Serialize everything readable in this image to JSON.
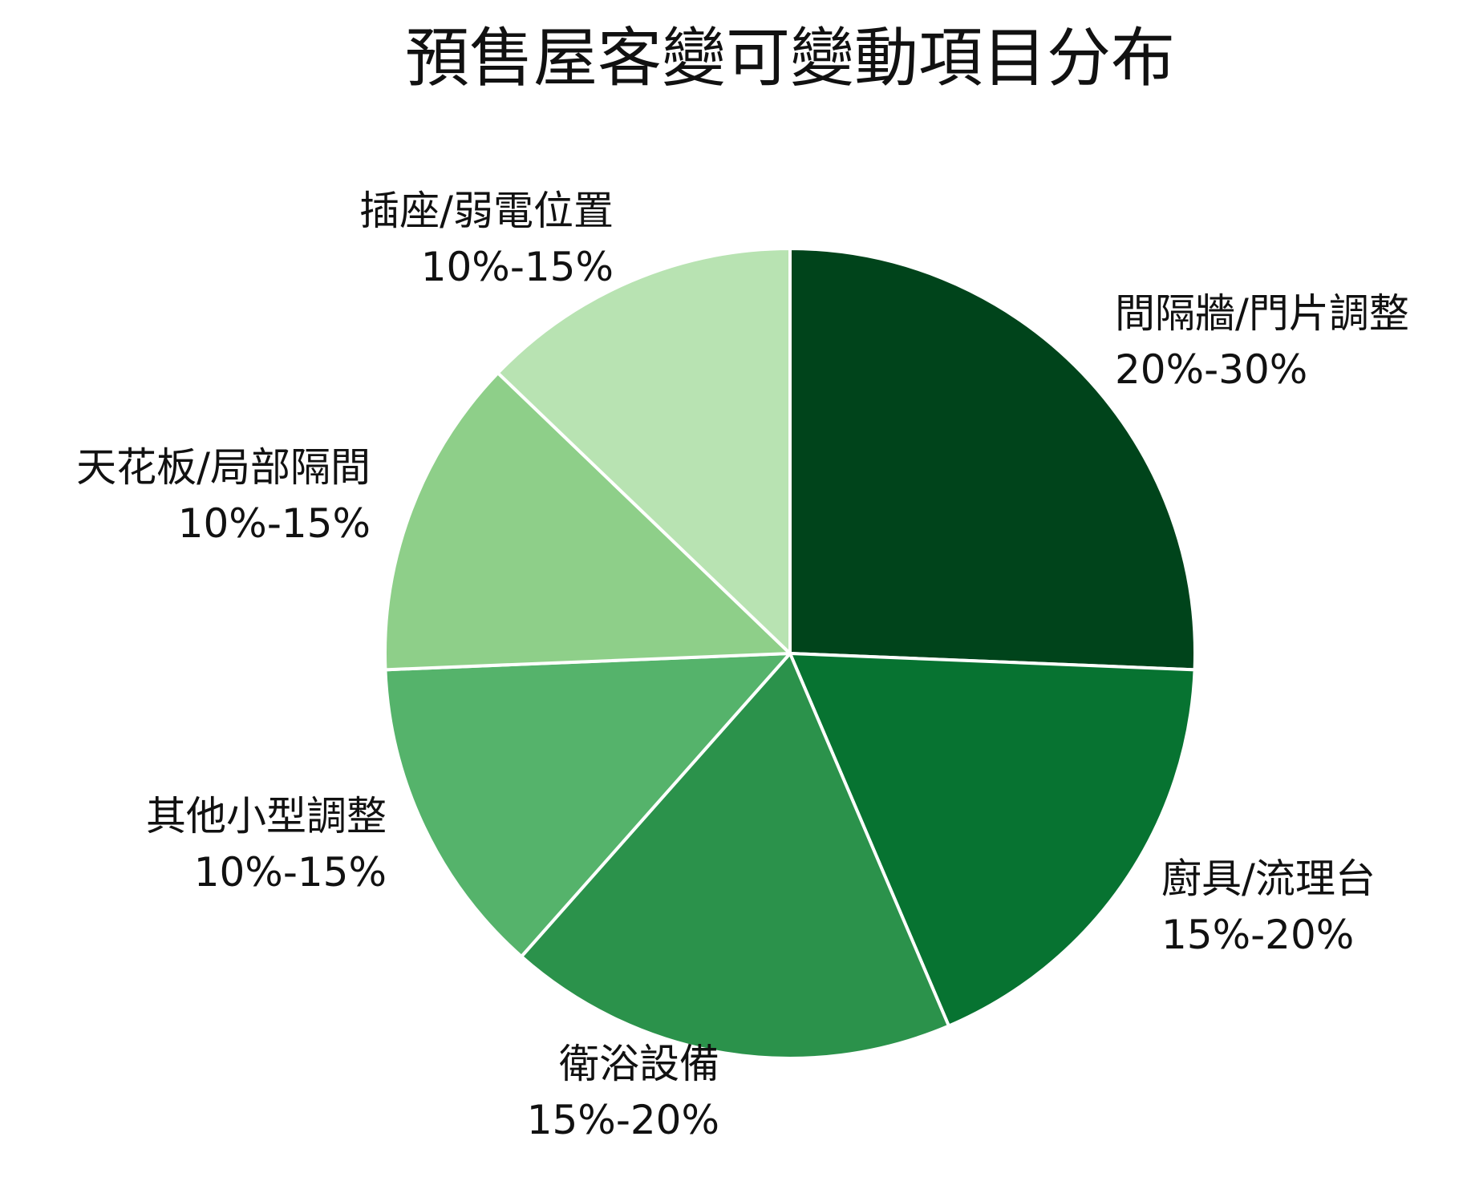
{
  "chart_data": {
    "type": "pie",
    "title": "預售屋客變可變動項目分布",
    "start_angle_deg": 90,
    "direction": "clockwise",
    "slices": [
      {
        "label": "間隔牆/門片調整",
        "range_text": "20%-30%",
        "value": 25,
        "color": "#00441b"
      },
      {
        "label": "廚具/流理台",
        "range_text": "15%-20%",
        "value": 17.5,
        "color": "#077331"
      },
      {
        "label": "衛浴設備",
        "range_text": "15%-20%",
        "value": 17.5,
        "color": "#2b924b"
      },
      {
        "label": "其他小型調整",
        "range_text": "10%-15%",
        "value": 12.5,
        "color": "#55b36b"
      },
      {
        "label": "天花板/局部隔間",
        "range_text": "10%-15%",
        "value": 12.5,
        "color": "#8ecf89"
      },
      {
        "label": "插座/弱電位置",
        "range_text": "10%-15%",
        "value": 12.5,
        "color": "#b8e3b2"
      }
    ]
  }
}
